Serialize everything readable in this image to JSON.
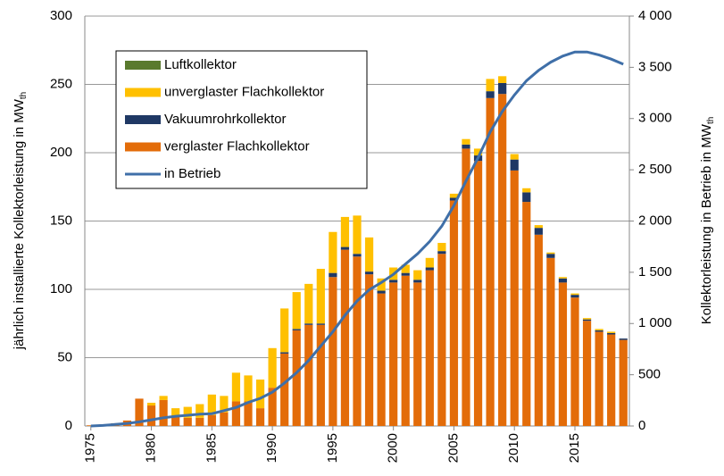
{
  "chart_data": {
    "type": "bar",
    "stacked": true,
    "ylabel": "jährlich installierte Kollektorleistung in MW",
    "ylabel_sub": "th",
    "y2label": "Kollektorleistung in Betrieb in MW",
    "y2label_sub": "th",
    "x": [
      1975,
      1976,
      1977,
      1978,
      1979,
      1980,
      1981,
      1982,
      1983,
      1984,
      1985,
      1986,
      1987,
      1988,
      1989,
      1990,
      1991,
      1992,
      1993,
      1994,
      1995,
      1996,
      1997,
      1998,
      1999,
      2000,
      2001,
      2002,
      2003,
      2004,
      2005,
      2006,
      2007,
      2008,
      2009,
      2010,
      2011,
      2012,
      2013,
      2014,
      2015,
      2016,
      2017,
      2018,
      2019
    ],
    "xlim": [
      1974.5,
      2019.5
    ],
    "xticks": [
      1975,
      1980,
      1985,
      1990,
      1995,
      2000,
      2005,
      2010,
      2015
    ],
    "ylim": [
      0,
      300
    ],
    "yticks": [
      0,
      50,
      100,
      150,
      200,
      250,
      300
    ],
    "y2lim": [
      0,
      4000
    ],
    "y2ticks": [
      0,
      500,
      {
        "value": 1000,
        "label": "1 000"
      },
      {
        "value": 1500,
        "label": "1 500"
      },
      {
        "value": 2000,
        "label": "2 000"
      },
      {
        "value": 2500,
        "label": "2 500"
      },
      {
        "value": 3000,
        "label": "3 000"
      },
      {
        "value": 3500,
        "label": "3 500"
      },
      {
        "value": 4000,
        "label": "4 000"
      }
    ],
    "grid": true,
    "legend": "upper left",
    "series": [
      {
        "name": "Luftkollektor",
        "color": "#5a7a2e",
        "values": [
          0,
          0,
          0,
          0,
          0,
          0,
          0,
          0,
          0,
          0,
          0,
          0,
          0,
          0,
          0,
          0,
          0,
          0,
          0,
          0,
          0,
          0,
          0,
          0,
          0,
          0,
          0,
          0,
          0,
          0,
          0,
          0,
          0,
          0,
          0,
          0,
          0,
          0,
          0,
          0,
          0,
          0,
          0,
          0,
          0
        ]
      },
      {
        "name": "unverglaster Flachkollektor",
        "color": "#ffc000",
        "values": [
          0,
          0,
          0,
          0,
          0,
          2,
          3,
          6,
          8,
          10,
          15,
          12,
          21,
          19,
          21,
          29,
          32,
          27,
          29,
          40,
          30,
          22,
          28,
          25,
          9,
          9,
          6,
          7,
          7,
          6,
          3,
          4,
          5,
          9,
          5,
          4,
          3,
          2,
          1,
          1,
          1,
          1,
          1,
          1,
          0
        ]
      },
      {
        "name": "Vakuumrohrkollektor",
        "color": "#1f3864",
        "values": [
          0,
          0,
          0,
          0,
          0,
          0,
          0,
          0,
          0,
          0,
          0,
          0,
          0,
          0,
          0,
          0,
          1,
          1,
          1,
          1,
          3,
          2,
          2,
          2,
          2,
          2,
          2,
          2,
          2,
          2,
          2,
          3,
          4,
          5,
          8,
          8,
          7,
          5,
          3,
          3,
          2,
          1,
          1,
          1,
          1
        ]
      },
      {
        "name": "verglaster Flachkollektor",
        "color": "#e36c09",
        "values": [
          0.5,
          1,
          2,
          4,
          20,
          15,
          19,
          7,
          6,
          6,
          8,
          10,
          18,
          18,
          13,
          28,
          53,
          70,
          74,
          74,
          109,
          129,
          124,
          111,
          97,
          105,
          110,
          105,
          114,
          126,
          165,
          203,
          194,
          240,
          243,
          187,
          164,
          140,
          123,
          105,
          94,
          77,
          69,
          67,
          63
        ]
      },
      {
        "name": "in Betrieb",
        "color": "#3f6fa8",
        "type": "line",
        "axis": "y2",
        "values": [
          0,
          5,
          15,
          25,
          40,
          60,
          80,
          95,
          105,
          115,
          120,
          150,
          180,
          230,
          270,
          330,
          420,
          520,
          640,
          780,
          920,
          1080,
          1220,
          1330,
          1400,
          1480,
          1580,
          1680,
          1800,
          1950,
          2150,
          2390,
          2620,
          2870,
          3070,
          3230,
          3370,
          3470,
          3550,
          3610,
          3650,
          3650,
          3620,
          3580,
          3530
        ]
      }
    ]
  }
}
